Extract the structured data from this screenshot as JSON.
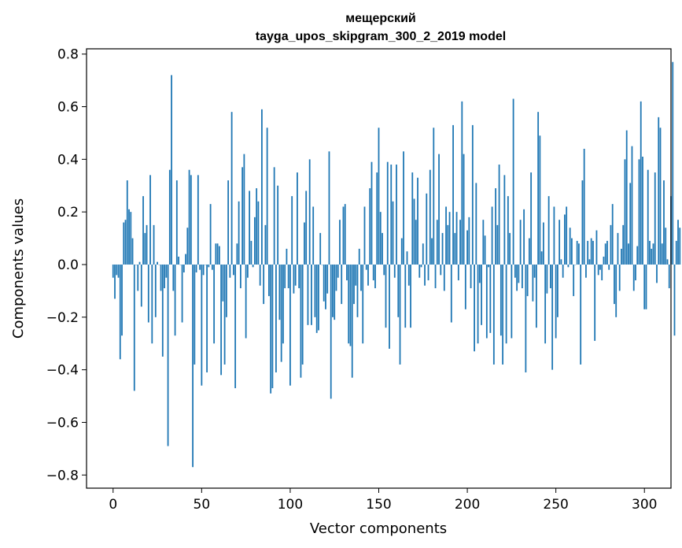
{
  "chart_data": {
    "type": "bar",
    "title_line1": "мещерский",
    "title_line2": "tayga_upos_skipgram_300_2_2019 model",
    "xlabel": "Vector components",
    "ylabel": "Components values",
    "xlim": [
      -15,
      315
    ],
    "ylim": [
      -0.85,
      0.82
    ],
    "xticks": [
      0,
      50,
      100,
      150,
      200,
      250,
      300
    ],
    "xtick_labels": [
      "0",
      "50",
      "100",
      "150",
      "200",
      "250",
      "300"
    ],
    "yticks": [
      0.8,
      0.6,
      0.4,
      0.2,
      0.0,
      -0.2,
      -0.4,
      -0.6,
      -0.8
    ],
    "ytick_labels": [
      "0.8",
      "0.6",
      "0.4",
      "0.2",
      "0.0",
      "−0.2",
      "−0.4",
      "−0.6",
      "−0.8"
    ],
    "color": "#1f77b4",
    "values": [
      -0.05,
      -0.13,
      -0.04,
      -0.05,
      -0.36,
      -0.27,
      0.16,
      0.17,
      0.32,
      0.21,
      0.2,
      0.1,
      -0.48,
      0.0,
      -0.1,
      0.01,
      -0.16,
      0.26,
      0.12,
      0.15,
      -0.22,
      0.34,
      -0.3,
      0.15,
      -0.2,
      0.01,
      0.0,
      -0.1,
      -0.35,
      -0.09,
      -0.05,
      -0.69,
      0.36,
      0.72,
      -0.1,
      -0.27,
      0.32,
      0.03,
      0.0,
      -0.22,
      -0.03,
      0.04,
      0.14,
      0.36,
      0.34,
      -0.77,
      -0.38,
      -0.03,
      0.34,
      -0.02,
      -0.46,
      -0.04,
      0.0,
      -0.41,
      -0.01,
      0.23,
      -0.02,
      -0.3,
      0.08,
      0.08,
      0.07,
      -0.42,
      -0.14,
      -0.38,
      -0.2,
      0.32,
      -0.05,
      0.58,
      -0.04,
      -0.47,
      0.08,
      0.24,
      -0.09,
      0.37,
      0.42,
      -0.28,
      -0.05,
      0.28,
      0.09,
      -0.01,
      0.18,
      0.29,
      0.24,
      -0.08,
      0.59,
      -0.15,
      0.15,
      0.52,
      -0.12,
      -0.49,
      -0.47,
      0.37,
      -0.41,
      0.3,
      -0.21,
      -0.37,
      -0.3,
      -0.09,
      0.06,
      -0.09,
      -0.46,
      0.26,
      -0.11,
      -0.08,
      0.35,
      -0.09,
      -0.43,
      -0.38,
      0.16,
      0.28,
      -0.23,
      0.4,
      -0.23,
      0.22,
      -0.2,
      -0.26,
      -0.25,
      0.12,
      0.0,
      -0.14,
      -0.17,
      -0.11,
      0.43,
      -0.51,
      -0.2,
      -0.21,
      -0.1,
      -0.05,
      0.17,
      -0.15,
      0.22,
      0.23,
      -0.06,
      -0.3,
      -0.31,
      -0.43,
      -0.15,
      -0.08,
      -0.2,
      0.06,
      -0.1,
      -0.3,
      0.22,
      -0.02,
      -0.08,
      0.29,
      0.39,
      -0.06,
      -0.09,
      0.35,
      0.52,
      0.2,
      0.12,
      -0.04,
      -0.24,
      0.39,
      -0.32,
      0.38,
      0.24,
      -0.05,
      0.38,
      -0.2,
      -0.38,
      0.1,
      0.43,
      -0.24,
      0.05,
      -0.08,
      -0.24,
      0.35,
      0.25,
      0.17,
      0.33,
      -0.05,
      -0.01,
      0.08,
      -0.08,
      0.27,
      -0.06,
      0.36,
      0.1,
      0.52,
      -0.09,
      0.17,
      0.42,
      -0.04,
      0.12,
      -0.1,
      0.22,
      0.15,
      0.2,
      -0.22,
      0.53,
      0.12,
      0.2,
      -0.06,
      0.17,
      0.62,
      0.42,
      -0.17,
      0.13,
      0.18,
      -0.09,
      0.53,
      -0.33,
      0.31,
      -0.3,
      -0.07,
      -0.23,
      0.17,
      0.11,
      -0.28,
      -0.01,
      -0.26,
      0.22,
      -0.38,
      0.29,
      0.15,
      0.38,
      -0.27,
      -0.38,
      0.34,
      -0.3,
      0.26,
      0.12,
      -0.28,
      0.63,
      -0.05,
      -0.1,
      -0.07,
      0.17,
      -0.09,
      0.21,
      -0.41,
      -0.12,
      0.1,
      0.35,
      -0.14,
      -0.05,
      -0.24,
      0.58,
      0.49,
      0.05,
      0.16,
      -0.3,
      -0.11,
      0.26,
      -0.09,
      -0.4,
      0.22,
      -0.28,
      -0.2,
      0.17,
      0.02,
      -0.05,
      0.19,
      0.22,
      -0.01,
      0.14,
      0.1,
      -0.12,
      0.0,
      0.09,
      0.08,
      -0.38,
      0.32,
      0.44,
      -0.05,
      0.09,
      0.02,
      0.1,
      0.09,
      -0.29,
      0.13,
      -0.04,
      -0.02,
      -0.06,
      0.03,
      0.08,
      0.09,
      -0.02,
      0.15,
      0.23,
      -0.15,
      -0.2,
      0.12,
      -0.1,
      0.06,
      0.15,
      0.4,
      0.51,
      0.08,
      0.31,
      0.45,
      -0.1,
      -0.06,
      0.07,
      0.4,
      0.62,
      0.41,
      -0.17,
      -0.17,
      0.36,
      0.09,
      0.06,
      0.08,
      0.35,
      -0.07,
      0.56,
      0.52,
      0.08,
      0.32,
      0.14,
      0.02,
      -0.09,
      0.26,
      0.77,
      -0.27,
      0.09,
      0.17,
      0.14
    ]
  }
}
